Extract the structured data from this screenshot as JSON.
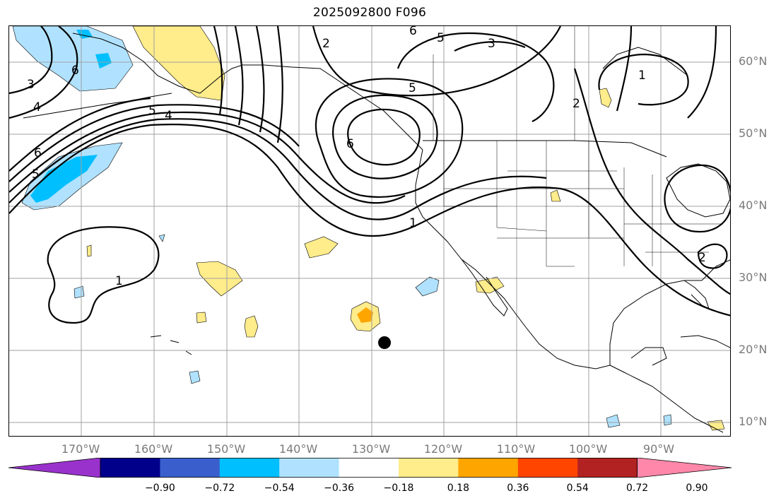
{
  "title": "2025092800 F096",
  "lat_labels": [
    "60°N",
    "50°N",
    "40°N",
    "30°N",
    "20°N",
    "10°N"
  ],
  "lon_labels": [
    "170°W",
    "160°W",
    "150°W",
    "140°W",
    "130°W",
    "120°W",
    "110°W",
    "100°W",
    "90°W"
  ],
  "contour_labels": [
    "6",
    "5",
    "3",
    "2",
    "5",
    "6",
    "6",
    "4",
    "5",
    "4",
    "6",
    "5",
    "1",
    "1",
    "2",
    "2",
    "1",
    "3"
  ],
  "colorbar": {
    "colors": [
      "#9932cc",
      "#00008b",
      "#3a5fcd",
      "#00bfff",
      "#b0e2ff",
      "#ffffff",
      "#ffec8b",
      "#ffa500",
      "#ff4500",
      "#b22222",
      "#ff88aa"
    ],
    "tick_labels": [
      "−0.90",
      "−0.72",
      "−0.54",
      "−0.36",
      "−0.18",
      "0.18",
      "0.36",
      "0.54",
      "0.72",
      "0.90"
    ]
  },
  "colors": {
    "grid": "#a0a0a0",
    "axis_label": "#7a7a7a",
    "contour": "#000000",
    "positive_fill": "#ffec8b",
    "strong_positive_fill": "#ffa500",
    "negative_fill": "#b0e2ff",
    "strong_negative_fill": "#00bfff"
  },
  "marker": {
    "label": "storm-center-marker"
  }
}
